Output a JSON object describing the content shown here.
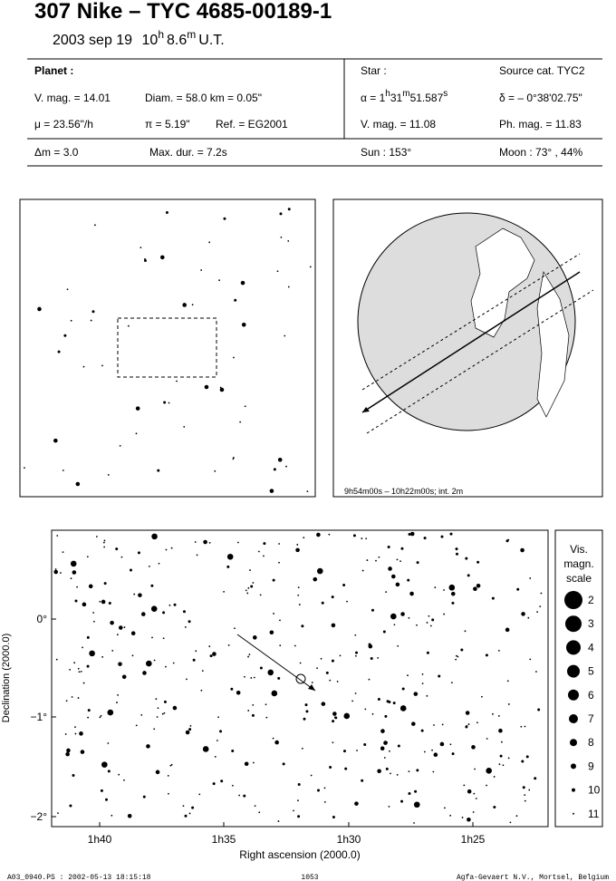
{
  "header": {
    "title": "307 Nike  –  TYC 4685-00189-1",
    "subtitle": {
      "date": "2003 sep 19",
      "hour": "10",
      "hour_unit": "h",
      "minute": "8.6",
      "minute_unit": "m",
      "suffix": "U.T."
    }
  },
  "planet": {
    "heading": "Planet :",
    "vmag": "V. mag. = 14.01",
    "diam": "Diam. = 58.0 km = 0.05\"",
    "motion": "μ = 23.56\"/h",
    "parallax": "π = 5.19\"",
    "ref": "Ref. = EG2001"
  },
  "star": {
    "heading": "Star :",
    "source": "Source cat.  TYC2",
    "ra": {
      "prefix": "α = 1",
      "h": "h",
      "min": "31",
      "m": "m",
      "sec": "51.587",
      "s": "s"
    },
    "dec": "δ = – 0°38'02.75\"",
    "vmag": "V. mag. = 11.08",
    "phmag": "Ph. mag. = 11.83"
  },
  "summary": {
    "dmag": "Δm = 3.0",
    "maxdur": "Max. dur. = 7.2s",
    "sun": "Sun : 153°",
    "moon": "Moon :  73° , 44%"
  },
  "globe": {
    "caption": "9h54m00s – 10h22m00s; int.  2m"
  },
  "star_chart": {
    "x_label": "Right ascension (2000.0)",
    "y_label": "Declination (2000.0)",
    "x_ticks": [
      "1h40",
      "1h35",
      "1h30",
      "1h25"
    ],
    "y_ticks": [
      "0°",
      "−1°",
      "−2°"
    ],
    "scale": {
      "title": [
        "Vis.",
        "magn.",
        "scale"
      ],
      "magnitudes": [
        2,
        3,
        4,
        5,
        6,
        7,
        8,
        9,
        10,
        11
      ]
    }
  },
  "footer": {
    "file": "A03_0940.PS : 2002-05-13 18:15:18",
    "page": "1053",
    "credit": "Agfa-Gevaert N.V., Mortsel, Belgium"
  }
}
